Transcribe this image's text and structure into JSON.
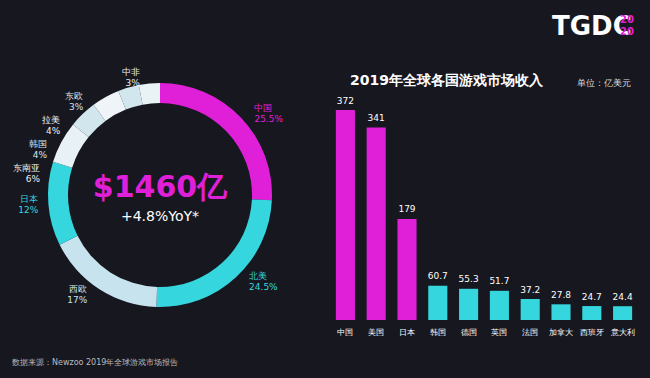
{
  "logo": {
    "text": "TGDC",
    "year": [
      "20",
      "20"
    ]
  },
  "source": "数据来源：Newzoo 2019年全球游戏市场报告",
  "chart_data": [
    {
      "type": "pie",
      "center_text": "$1460亿",
      "center_subtext": "+4.8%YoY*",
      "categories": [
        "中国",
        "北美",
        "西欧",
        "日本",
        "东南亚",
        "韩国",
        "拉美",
        "东欧",
        "中非"
      ],
      "values": [
        25.5,
        24.5,
        17,
        12,
        6,
        4,
        4,
        3,
        3
      ],
      "value_labels": [
        "25.5%",
        "24.5%",
        "17%",
        "12%",
        "6%",
        "4%",
        "4%",
        "3%",
        "3%"
      ],
      "colors": [
        "#e020d8",
        "#35d6de",
        "#c7e4ee",
        "#35d6de",
        "#e8f1f5",
        "#d2e6ee",
        "#eef4f7",
        "#d2e6ee",
        "#e9f2f5"
      ],
      "data_labels": true
    },
    {
      "type": "bar",
      "title": "2019年全球各国游戏市场收入",
      "subtitle": "单位：亿美元",
      "categories": [
        "中国",
        "美国",
        "日本",
        "韩国",
        "德国",
        "英国",
        "法国",
        "加拿大",
        "西班牙",
        "意大利"
      ],
      "values": [
        372,
        341,
        179,
        60.7,
        55.3,
        51.7,
        37.2,
        27.8,
        24.7,
        24.4
      ],
      "colors": [
        "#e020d8",
        "#e020d8",
        "#e020d8",
        "#35d6de",
        "#35d6de",
        "#35d6de",
        "#35d6de",
        "#35d6de",
        "#35d6de",
        "#35d6de"
      ],
      "ylim": [
        0,
        372
      ],
      "data_labels": true,
      "tick_labels": "x",
      "grid": false
    }
  ]
}
